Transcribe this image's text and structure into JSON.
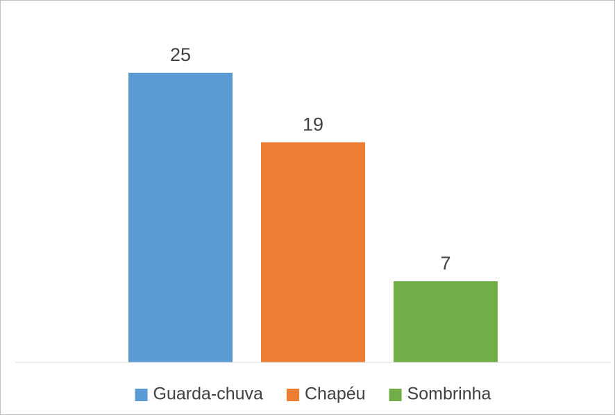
{
  "chart_data": {
    "type": "bar",
    "categories": [
      null
    ],
    "series": [
      {
        "name": "Guarda-chuva",
        "color": "#5b9bd5",
        "values": [
          25
        ]
      },
      {
        "name": "Chapéu",
        "color": "#ed7d31",
        "values": [
          19
        ]
      },
      {
        "name": "Sombrinha",
        "color": "#70ad47",
        "values": [
          7
        ]
      }
    ],
    "ylim": [
      0,
      30
    ],
    "legend": "bottom"
  }
}
